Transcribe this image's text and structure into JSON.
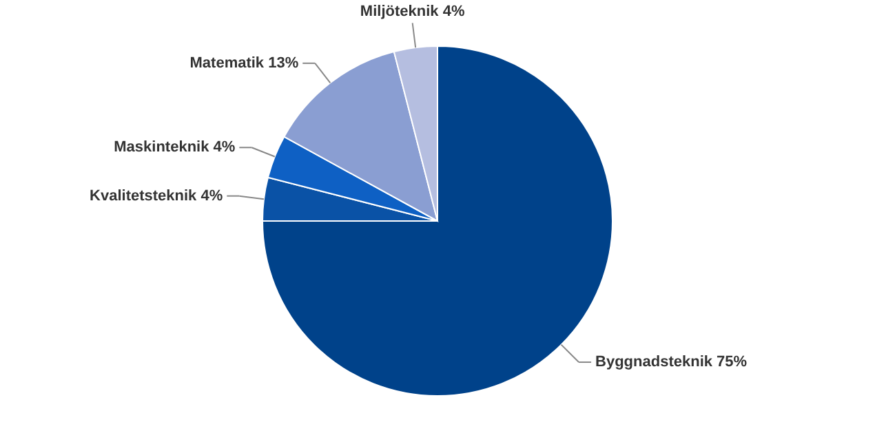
{
  "chart_data": {
    "type": "pie",
    "categories": [
      "Byggnadsteknik",
      "Kvalitetsteknik",
      "Maskinteknik",
      "Matematik",
      "Miljöteknik"
    ],
    "values": [
      75,
      4,
      4,
      13,
      4
    ],
    "value_labels": [
      "75%",
      "4%",
      "4%",
      "13%",
      "4%"
    ],
    "colors": [
      "#00428a",
      "#0a52a6",
      "#0e60c4",
      "#8a9ed2",
      "#b5bee0"
    ]
  }
}
